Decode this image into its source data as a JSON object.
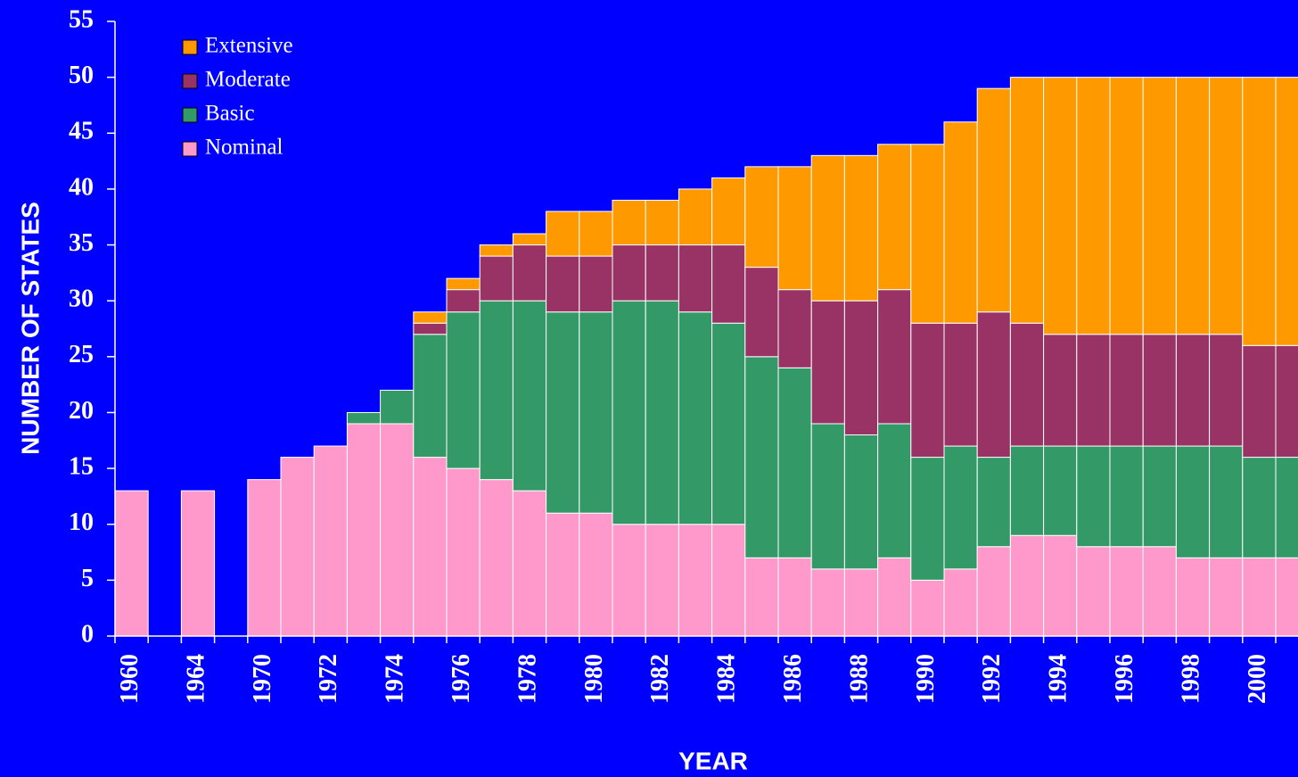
{
  "chart_data": {
    "type": "stacked_bar",
    "y_label": "NUMBER OF STATES",
    "x_label": "YEAR",
    "categories": [
      "1960",
      null,
      "1964",
      null,
      "1970",
      null,
      "1972",
      null,
      "1974",
      null,
      "1976",
      null,
      "1978",
      null,
      "1980",
      null,
      "1982",
      null,
      "1984",
      null,
      "1986",
      null,
      "1988",
      null,
      "1990",
      null,
      "1992",
      null,
      "1994",
      null,
      "1996",
      null,
      "1998",
      null,
      "2000",
      null
    ],
    "series": [
      {
        "name": "Nominal",
        "color": "#ff99cc",
        "values": [
          13,
          0,
          13,
          0,
          14,
          16,
          17,
          19,
          19,
          16,
          15,
          14,
          13,
          11,
          11,
          10,
          10,
          10,
          10,
          7,
          7,
          6,
          6,
          7,
          5,
          6,
          8,
          9,
          9,
          8,
          8,
          8,
          7,
          7,
          7,
          7
        ]
      },
      {
        "name": "Basic",
        "color": "#339966",
        "values": [
          0,
          0,
          0,
          0,
          0,
          0,
          0,
          1,
          3,
          11,
          14,
          16,
          17,
          18,
          18,
          20,
          20,
          19,
          18,
          18,
          17,
          13,
          12,
          12,
          11,
          11,
          8,
          8,
          8,
          9,
          9,
          9,
          10,
          10,
          9,
          9
        ]
      },
      {
        "name": "Moderate",
        "color": "#993366",
        "values": [
          0,
          0,
          0,
          0,
          0,
          0,
          0,
          0,
          0,
          1,
          2,
          4,
          5,
          5,
          5,
          5,
          5,
          6,
          7,
          8,
          7,
          11,
          12,
          12,
          12,
          11,
          13,
          11,
          10,
          10,
          10,
          10,
          10,
          10,
          10,
          10
        ]
      },
      {
        "name": "Extensive",
        "color": "#ff9900",
        "values": [
          0,
          0,
          0,
          0,
          0,
          0,
          0,
          0,
          0,
          1,
          1,
          1,
          1,
          4,
          4,
          4,
          4,
          5,
          6,
          9,
          11,
          13,
          13,
          13,
          16,
          18,
          20,
          22,
          23,
          23,
          23,
          23,
          23,
          23,
          24,
          24
        ]
      }
    ],
    "ylim": [
      0,
      55
    ],
    "yticks": [
      0,
      5,
      10,
      15,
      20,
      25,
      30,
      35,
      40,
      45,
      50,
      55
    ],
    "legend": "upper left"
  }
}
